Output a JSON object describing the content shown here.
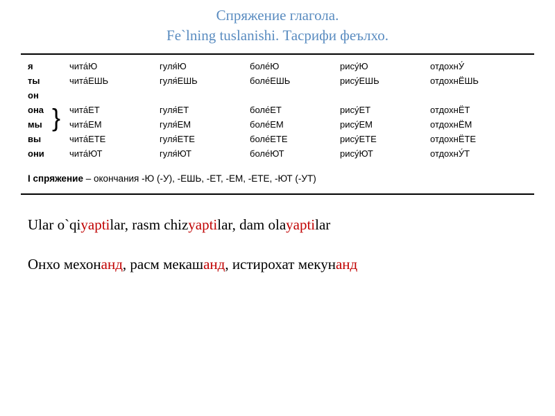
{
  "header": {
    "line1": "Спряжение глагола.",
    "line2": "Fe`lning tuslanishi. Тасрифи феълхо."
  },
  "pronouns": [
    "я",
    "ты",
    "он",
    "она",
    "мы",
    "вы",
    "они"
  ],
  "verbs": {
    "read": [
      "чита́Ю",
      "чита́ЕШЬ",
      "чита́ЕТ",
      "чита́ЕТ",
      "чита́ЕМ",
      "чита́ЕТЕ",
      "чита́ЮТ"
    ],
    "walk": [
      "гуля́Ю",
      "гуля́ЕШЬ",
      "гуля́ЕТ",
      "гуля́ЕТ",
      "гуля́ЕМ",
      "гуля́ЕТЕ",
      "гуля́ЮТ"
    ],
    "sick": [
      "боле́Ю",
      "боле́ЕШЬ",
      "боле́ЕТ",
      "боле́ЕТ",
      "боле́ЕМ",
      "боле́ЕТЕ",
      "боле́ЮТ"
    ],
    "draw": [
      "рису́Ю",
      "рису́ЕШЬ",
      "рису́ЕТ",
      "рису́ЕТ",
      "рису́ЕМ",
      "рису́ЕТЕ",
      "рису́ЮТ"
    ],
    "rest": [
      "отдохнУ́",
      "отдохнЁШЬ",
      "отдохнЁТ",
      "отдохнЁТ",
      "отдохнЁМ",
      "отдохнЁТЕ",
      "отдохнУ́Т"
    ]
  },
  "conj_row3_verb0": "чита́ЕТ",
  "rule": {
    "label": "I спряжение",
    "dash": " – окончания  -Ю (-У), -ЕШЬ, -ЕТ, -ЕМ, -ЕТЕ, -ЮТ (-УТ)"
  },
  "ex1": {
    "p1": "Ular o`qi",
    "h1": "yapti",
    "p2": "lar, rasm chiz",
    "h2": "yapti",
    "p3": "lar, dam ola",
    "h3": "yapti",
    "p4": "lar"
  },
  "ex2": {
    "p1": "Онхо мехон",
    "h1": "анд",
    "p2": ",  расм  мекаш",
    "h2": "анд",
    "p3": ", истирохат мекун",
    "h3": "анд"
  }
}
